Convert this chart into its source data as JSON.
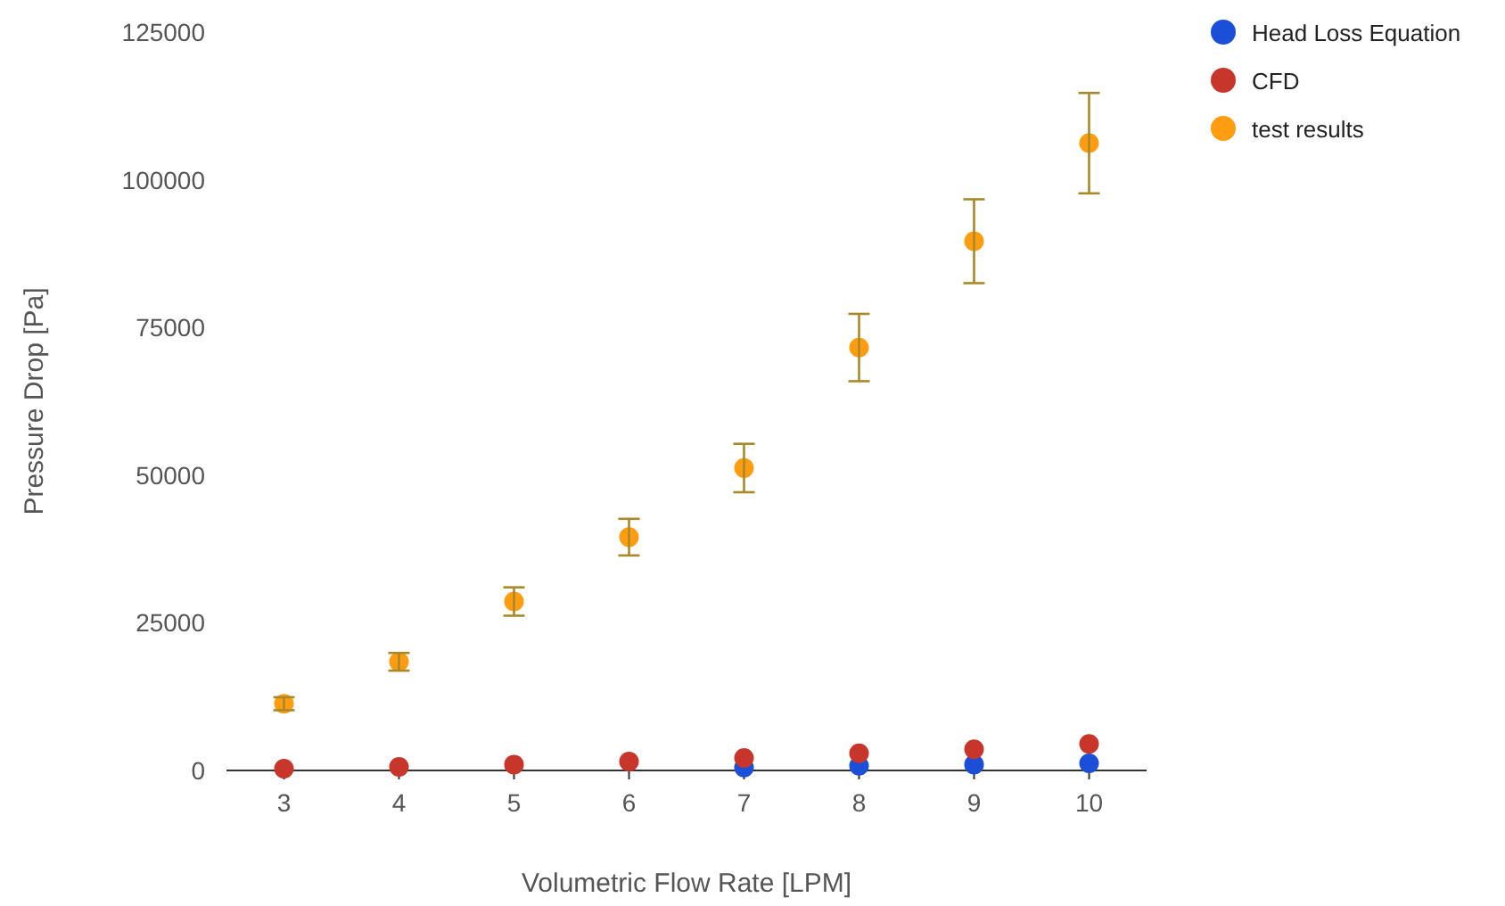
{
  "chart_data": {
    "type": "scatter",
    "xlabel": "Volumetric Flow Rate [LPM]",
    "ylabel": "Pressure Drop [Pa]",
    "x": [
      3,
      4,
      5,
      6,
      7,
      8,
      9,
      10
    ],
    "xlim": [
      2.5,
      10.5
    ],
    "xticks": [
      3,
      4,
      5,
      6,
      7,
      8,
      9,
      10
    ],
    "ylim": [
      0,
      125000
    ],
    "yticks": [
      0,
      25000,
      50000,
      75000,
      100000,
      125000
    ],
    "grid": false,
    "legend": "top right",
    "marker": "circle",
    "series": [
      {
        "name": "Head Loss Equation",
        "color": "#1c4fd8",
        "values": [
          null,
          null,
          null,
          null,
          500,
          800,
          1000,
          1200
        ]
      },
      {
        "name": "CFD",
        "color": "#c8352a",
        "values": [
          300,
          600,
          1000,
          1500,
          2100,
          2900,
          3600,
          4500
        ]
      },
      {
        "name": "test results",
        "color": "#ff9d12",
        "values": [
          11300,
          18400,
          28600,
          39500,
          51200,
          71600,
          89600,
          106200
        ],
        "errors": [
          1100,
          1500,
          2400,
          3100,
          4100,
          5700,
          7100,
          8500
        ]
      }
    ]
  }
}
